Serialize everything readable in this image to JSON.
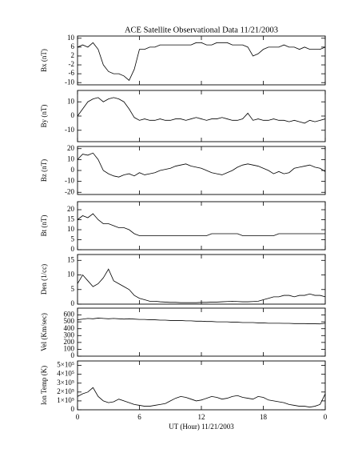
{
  "chart_data": [
    {
      "type": "line",
      "title": "ACE Satellite Observational Data   11/21/2003",
      "ylabel": "Bx (nT)",
      "color": "#000000",
      "x": [
        0,
        0.5,
        1,
        1.5,
        2,
        2.5,
        3,
        3.5,
        4,
        4.5,
        5,
        5.5,
        6,
        6.5,
        7,
        7.5,
        8,
        8.5,
        9,
        9.5,
        10,
        10.5,
        11,
        11.5,
        12,
        12.5,
        13,
        13.5,
        14,
        14.5,
        15,
        15.5,
        16,
        16.5,
        17,
        17.5,
        18,
        18.5,
        19,
        19.5,
        20,
        20.5,
        21,
        21.5,
        22,
        22.5,
        23,
        23.5,
        24
      ],
      "values": [
        6,
        7,
        6,
        8,
        5,
        -2,
        -5,
        -6,
        -6,
        -7,
        -9,
        -4,
        5,
        5,
        6,
        6,
        7,
        7,
        7,
        7,
        7,
        7,
        7,
        8,
        8,
        7,
        7,
        8,
        8,
        8,
        7,
        7,
        7,
        6,
        2,
        3,
        5,
        6,
        6,
        6,
        7,
        6,
        6,
        5,
        6,
        5,
        5,
        5,
        6
      ],
      "xlim": [
        0,
        24
      ],
      "ylim": [
        -11,
        11
      ],
      "yticks": [
        -10,
        -6,
        -2,
        2,
        6,
        10
      ]
    },
    {
      "type": "line",
      "ylabel": "By (nT)",
      "color": "#000000",
      "x": [
        0,
        0.5,
        1,
        1.5,
        2,
        2.5,
        3,
        3.5,
        4,
        4.5,
        5,
        5.5,
        6,
        6.5,
        7,
        7.5,
        8,
        8.5,
        9,
        9.5,
        10,
        10.5,
        11,
        11.5,
        12,
        12.5,
        13,
        13.5,
        14,
        14.5,
        15,
        15.5,
        16,
        16.5,
        17,
        17.5,
        18,
        18.5,
        19,
        19.5,
        20,
        20.5,
        21,
        21.5,
        22,
        22.5,
        23,
        23.5,
        24
      ],
      "values": [
        0,
        5,
        10,
        12,
        13,
        10,
        12,
        13,
        12,
        10,
        5,
        -1,
        -3,
        -2,
        -3,
        -3,
        -2,
        -3,
        -3,
        -2,
        -2,
        -3,
        -2,
        -1,
        -2,
        -3,
        -2,
        -2,
        -1,
        -2,
        -3,
        -3,
        -2,
        2,
        -3,
        -2,
        -3,
        -3,
        -2,
        -3,
        -3,
        -4,
        -3,
        -4,
        -5,
        -3,
        -4,
        -3,
        -2
      ],
      "xlim": [
        0,
        24
      ],
      "ylim": [
        -18,
        18
      ],
      "yticks": [
        -10,
        0,
        10
      ]
    },
    {
      "type": "line",
      "ylabel": "Bz (nT)",
      "color": "#000000",
      "x": [
        0,
        0.5,
        1,
        1.5,
        2,
        2.5,
        3,
        3.5,
        4,
        4.5,
        5,
        5.5,
        6,
        6.5,
        7,
        7.5,
        8,
        8.5,
        9,
        9.5,
        10,
        10.5,
        11,
        11.5,
        12,
        12.5,
        13,
        13.5,
        14,
        14.5,
        15,
        15.5,
        16,
        16.5,
        17,
        17.5,
        18,
        18.5,
        19,
        19.5,
        20,
        20.5,
        21,
        21.5,
        22,
        22.5,
        23,
        23.5,
        24
      ],
      "values": [
        10,
        15,
        14,
        16,
        10,
        0,
        -3,
        -5,
        -6,
        -4,
        -3,
        -5,
        -2,
        -4,
        -3,
        -2,
        0,
        1,
        2,
        4,
        5,
        6,
        4,
        3,
        2,
        0,
        -2,
        -3,
        -4,
        -2,
        0,
        3,
        5,
        6,
        5,
        4,
        2,
        0,
        -3,
        -1,
        -3,
        -2,
        2,
        3,
        4,
        5,
        3,
        2,
        -1
      ],
      "xlim": [
        0,
        24
      ],
      "ylim": [
        -22,
        22
      ],
      "yticks": [
        -20,
        -10,
        0,
        10,
        20
      ]
    },
    {
      "type": "line",
      "ylabel": "Bt (nT)",
      "color": "#000000",
      "x": [
        0,
        0.5,
        1,
        1.5,
        2,
        2.5,
        3,
        3.5,
        4,
        4.5,
        5,
        5.5,
        6,
        6.5,
        7,
        7.5,
        8,
        8.5,
        9,
        9.5,
        10,
        10.5,
        11,
        11.5,
        12,
        12.5,
        13,
        13.5,
        14,
        14.5,
        15,
        15.5,
        16,
        16.5,
        17,
        17.5,
        18,
        18.5,
        19,
        19.5,
        20,
        20.5,
        21,
        21.5,
        22,
        22.5,
        23,
        23.5,
        24
      ],
      "values": [
        15,
        17,
        16,
        18,
        15,
        13,
        13,
        12,
        11,
        11,
        10,
        8,
        7,
        7,
        7,
        7,
        7,
        7,
        7,
        7,
        7,
        7,
        7,
        7,
        7,
        7,
        8,
        8,
        8,
        8,
        8,
        8,
        7,
        7,
        7,
        7,
        7,
        7,
        7,
        8,
        8,
        8,
        8,
        8,
        8,
        8,
        8,
        8,
        8
      ],
      "xlim": [
        0,
        24
      ],
      "ylim": [
        0,
        24
      ],
      "yticks": [
        0,
        5,
        10,
        15,
        20
      ]
    },
    {
      "type": "line",
      "ylabel": "Den (1/cc)",
      "color": "#000000",
      "x": [
        0,
        0.5,
        1,
        1.5,
        2,
        2.5,
        3,
        3.5,
        4,
        4.5,
        5,
        5.5,
        6,
        6.5,
        7,
        7.5,
        8,
        8.5,
        9,
        9.5,
        10,
        10.5,
        11,
        11.5,
        12,
        12.5,
        13,
        13.5,
        14,
        14.5,
        15,
        15.5,
        16,
        16.5,
        17,
        17.5,
        18,
        18.5,
        19,
        19.5,
        20,
        20.5,
        21,
        21.5,
        22,
        22.5,
        23,
        23.5,
        24
      ],
      "values": [
        7,
        10,
        8,
        6,
        7,
        9,
        12,
        8,
        7,
        6,
        5,
        3,
        2,
        1.5,
        1,
        1,
        0.8,
        0.7,
        0.6,
        0.6,
        0.5,
        0.5,
        0.5,
        0.5,
        0.6,
        0.6,
        0.7,
        0.7,
        0.8,
        0.9,
        1,
        0.9,
        0.8,
        0.8,
        0.9,
        1,
        1.5,
        2,
        2.5,
        2.5,
        3,
        3,
        2.5,
        3,
        3,
        3.5,
        3,
        3,
        2.5
      ],
      "xlim": [
        0,
        24
      ],
      "ylim": [
        0,
        17
      ],
      "yticks": [
        0,
        5,
        10,
        15
      ]
    },
    {
      "type": "line",
      "ylabel": "Vel (Km/sec)",
      "color": "#000000",
      "x": [
        0,
        0.5,
        1,
        1.5,
        2,
        2.5,
        3,
        3.5,
        4,
        4.5,
        5,
        5.5,
        6,
        6.5,
        7,
        7.5,
        8,
        8.5,
        9,
        9.5,
        10,
        10.5,
        11,
        11.5,
        12,
        12.5,
        13,
        13.5,
        14,
        14.5,
        15,
        15.5,
        16,
        16.5,
        17,
        17.5,
        18,
        18.5,
        19,
        19.5,
        20,
        20.5,
        21,
        21.5,
        22,
        22.5,
        23,
        23.5,
        24
      ],
      "values": [
        530,
        540,
        550,
        545,
        555,
        550,
        545,
        550,
        545,
        540,
        545,
        540,
        535,
        535,
        530,
        530,
        525,
        525,
        520,
        520,
        520,
        515,
        515,
        510,
        510,
        505,
        505,
        500,
        500,
        500,
        495,
        495,
        490,
        490,
        490,
        485,
        485,
        480,
        480,
        480,
        478,
        478,
        475,
        475,
        475,
        472,
        472,
        470,
        480
      ],
      "xlim": [
        0,
        24
      ],
      "ylim": [
        0,
        700
      ],
      "yticks": [
        0,
        100,
        200,
        300,
        400,
        500,
        600
      ]
    },
    {
      "type": "line",
      "ylabel": "Ion Temp (K)",
      "xlabel": "UT (Hour)   11/21/2003",
      "color": "#000000",
      "x": [
        0,
        0.5,
        1,
        1.5,
        2,
        2.5,
        3,
        3.5,
        4,
        4.5,
        5,
        5.5,
        6,
        6.5,
        7,
        7.5,
        8,
        8.5,
        9,
        9.5,
        10,
        10.5,
        11,
        11.5,
        12,
        12.5,
        13,
        13.5,
        14,
        14.5,
        15,
        15.5,
        16,
        16.5,
        17,
        17.5,
        18,
        18.5,
        19,
        19.5,
        20,
        20.5,
        21,
        21.5,
        22,
        22.5,
        23,
        23.5,
        24
      ],
      "values": [
        150000,
        180000,
        200000,
        250000,
        150000,
        100000,
        80000,
        90000,
        120000,
        100000,
        80000,
        60000,
        50000,
        40000,
        40000,
        50000,
        60000,
        70000,
        100000,
        130000,
        150000,
        140000,
        120000,
        100000,
        110000,
        130000,
        150000,
        140000,
        120000,
        130000,
        150000,
        160000,
        140000,
        130000,
        120000,
        150000,
        140000,
        110000,
        100000,
        90000,
        80000,
        60000,
        50000,
        40000,
        40000,
        30000,
        40000,
        60000,
        180000
      ],
      "xlim": [
        0,
        24
      ],
      "ylim": [
        0,
        550000
      ],
      "yticks": [
        0,
        {
          "value": 100000,
          "label": "1×10⁵"
        },
        {
          "value": 200000,
          "label": "2×10⁵"
        },
        {
          "value": 300000,
          "label": "3×10⁵"
        },
        {
          "value": 400000,
          "label": "4×10⁵"
        },
        {
          "value": 500000,
          "label": "5×10⁵"
        }
      ],
      "xticks": [
        0,
        6,
        12,
        18,
        {
          "value": 24,
          "label": "0"
        }
      ]
    }
  ]
}
